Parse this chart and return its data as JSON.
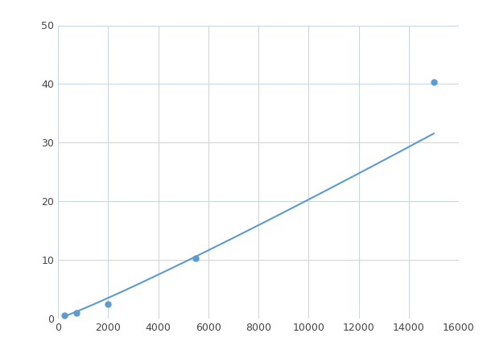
{
  "x": [
    250,
    750,
    2000,
    5500,
    15000
  ],
  "y": [
    0.5,
    1.0,
    2.5,
    10.3,
    40.3
  ],
  "line_color": "#5b9bd5",
  "marker_color": "#5b9bd5",
  "marker_size": 5,
  "line_width": 1.5,
  "xlim": [
    0,
    16000
  ],
  "ylim": [
    0,
    50
  ],
  "xticks": [
    0,
    2000,
    4000,
    6000,
    8000,
    10000,
    12000,
    14000,
    16000
  ],
  "yticks": [
    0,
    10,
    20,
    30,
    40,
    50
  ],
  "grid_color": "#c8d4e0",
  "bg_color": "#ffffff",
  "fig_bg_color": "#ffffff"
}
